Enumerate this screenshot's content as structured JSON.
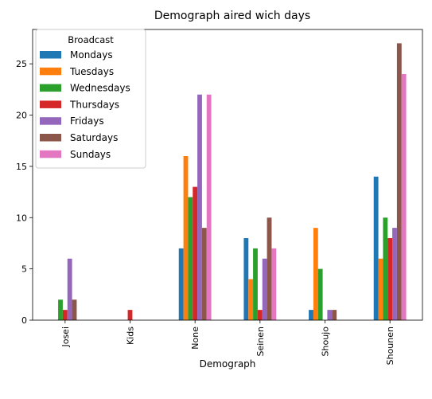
{
  "chart_data": {
    "type": "bar",
    "title": "Demograph aired wich days",
    "xlabel": "Demograph",
    "ylabel": "",
    "categories": [
      "Josei",
      "Kids",
      "None",
      "Seinen",
      "Shoujo",
      "Shounen"
    ],
    "ylim": [
      0,
      28.35
    ],
    "yticks": [
      0,
      5,
      10,
      15,
      20,
      25
    ],
    "grid": false,
    "legend": {
      "title": "Broadcast",
      "placement": "upper-left"
    },
    "series": [
      {
        "name": "Mondays",
        "color": "#1f77b4",
        "values": [
          0,
          0,
          7,
          8,
          1,
          14
        ]
      },
      {
        "name": "Tuesdays",
        "color": "#ff7f0e",
        "values": [
          0,
          0,
          16,
          4,
          9,
          6
        ]
      },
      {
        "name": "Wednesdays",
        "color": "#2ca02c",
        "values": [
          2,
          0,
          12,
          7,
          5,
          10
        ]
      },
      {
        "name": "Thursdays",
        "color": "#d62728",
        "values": [
          1,
          1,
          13,
          1,
          0,
          8
        ]
      },
      {
        "name": "Fridays",
        "color": "#9467bd",
        "values": [
          6,
          0,
          22,
          6,
          1,
          9
        ]
      },
      {
        "name": "Saturdays",
        "color": "#8c564b",
        "values": [
          2,
          0,
          9,
          10,
          1,
          27
        ]
      },
      {
        "name": "Sundays",
        "color": "#e377c2",
        "values": [
          0,
          0,
          22,
          7,
          0,
          24
        ]
      }
    ]
  }
}
